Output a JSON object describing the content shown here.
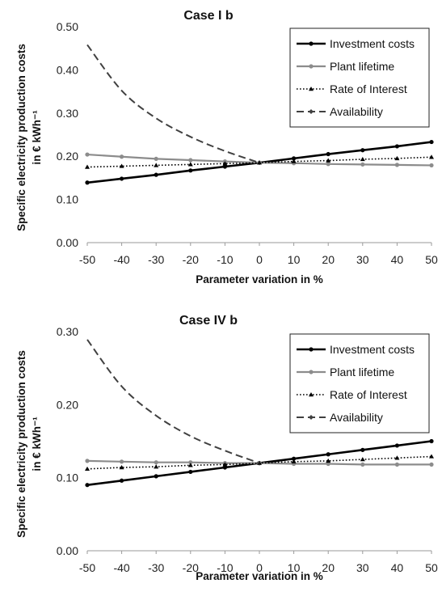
{
  "chart_data": [
    {
      "type": "line",
      "title": "Case I b",
      "xlabel": "Parameter variation in %",
      "ylabel_lines": [
        "Specific electricity production costs",
        "in € kWh⁻¹"
      ],
      "x": [
        -50,
        -40,
        -30,
        -20,
        -10,
        0,
        10,
        20,
        30,
        40,
        50
      ],
      "xlim": [
        -50,
        50
      ],
      "ylim": [
        0,
        0.5
      ],
      "yticks": [
        "0.00",
        "0.10",
        "0.20",
        "0.30",
        "0.40",
        "0.50"
      ],
      "xticks": [
        "-50",
        "-40",
        "-30",
        "-20",
        "-10",
        "0",
        "10",
        "20",
        "30",
        "40",
        "50"
      ],
      "grid": false,
      "legend_position": "top-right",
      "series": [
        {
          "name": "Investment costs",
          "color": "#000000",
          "style": "solid",
          "marker": "circle",
          "values": [
            0.139,
            0.148,
            0.157,
            0.167,
            0.176,
            0.185,
            0.195,
            0.205,
            0.214,
            0.223,
            0.233
          ]
        },
        {
          "name": "Plant lifetime",
          "color": "#8c8c8c",
          "style": "solid",
          "marker": "circle",
          "values": [
            0.204,
            0.199,
            0.194,
            0.191,
            0.188,
            0.185,
            0.184,
            0.182,
            0.181,
            0.18,
            0.179
          ]
        },
        {
          "name": "Rate of Interest",
          "color": "#000000",
          "style": "dotted",
          "marker": "triangle",
          "values": [
            0.175,
            0.177,
            0.179,
            0.181,
            0.183,
            0.185,
            0.188,
            0.19,
            0.193,
            0.195,
            0.198
          ]
        },
        {
          "name": "Availability",
          "color": "#404040",
          "style": "dashed",
          "marker": "diamond",
          "values": [
            0.458,
            0.352,
            0.288,
            0.245,
            0.212,
            0.185,
            null,
            null,
            null,
            null,
            null
          ]
        }
      ]
    },
    {
      "type": "line",
      "title": "Case IV b",
      "xlabel": "Parameter variation in %",
      "ylabel_lines": [
        "Specific electricity production costs",
        "in € kWh⁻¹"
      ],
      "x": [
        -50,
        -40,
        -30,
        -20,
        -10,
        0,
        10,
        20,
        30,
        40,
        50
      ],
      "xlim": [
        -50,
        50
      ],
      "ylim": [
        0,
        0.3
      ],
      "yticks": [
        "0.00",
        "0.10",
        "0.20",
        "0.30"
      ],
      "xticks": [
        "-50",
        "-40",
        "-30",
        "-20",
        "-10",
        "0",
        "10",
        "20",
        "30",
        "40",
        "50"
      ],
      "grid": false,
      "legend_position": "top-right",
      "series": [
        {
          "name": "Investment costs",
          "color": "#000000",
          "style": "solid",
          "marker": "circle",
          "values": [
            0.09,
            0.096,
            0.102,
            0.108,
            0.114,
            0.12,
            0.126,
            0.132,
            0.138,
            0.144,
            0.15
          ]
        },
        {
          "name": "Plant lifetime",
          "color": "#8c8c8c",
          "style": "solid",
          "marker": "circle",
          "values": [
            0.123,
            0.122,
            0.121,
            0.121,
            0.12,
            0.12,
            0.119,
            0.119,
            0.118,
            0.118,
            0.118
          ]
        },
        {
          "name": "Rate of Interest",
          "color": "#000000",
          "style": "dotted",
          "marker": "triangle",
          "values": [
            0.112,
            0.114,
            0.115,
            0.117,
            0.118,
            0.12,
            0.122,
            0.123,
            0.125,
            0.127,
            0.129
          ]
        },
        {
          "name": "Availability",
          "color": "#404040",
          "style": "dashed",
          "marker": "diamond",
          "values": [
            0.289,
            0.225,
            0.185,
            0.157,
            0.137,
            0.12,
            null,
            null,
            null,
            null,
            null
          ]
        }
      ]
    }
  ]
}
